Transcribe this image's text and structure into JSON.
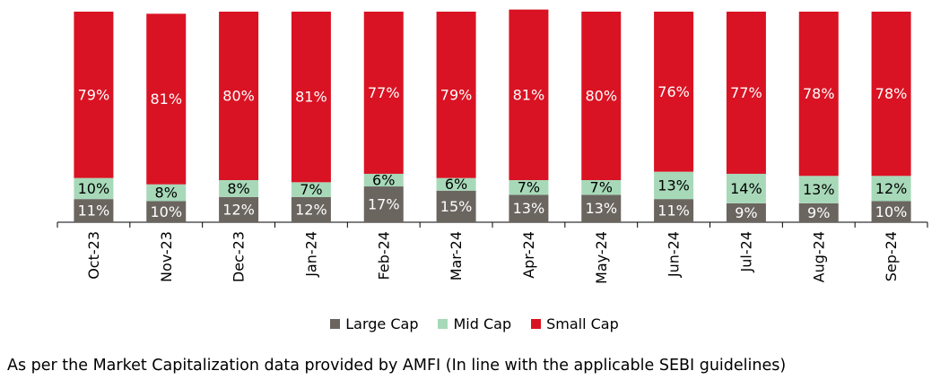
{
  "chart_data": {
    "type": "bar",
    "stacked": true,
    "categories": [
      "Oct-23",
      "Nov-23",
      "Dec-23",
      "Jan-24",
      "Feb-24",
      "Mar-24",
      "Apr-24",
      "May-24",
      "Jun-24",
      "Jul-24",
      "Aug-24",
      "Sep-24"
    ],
    "series": [
      {
        "name": "Large Cap",
        "color": "#6b6560",
        "label_color": "#ffffff",
        "values": [
          11,
          10,
          12,
          12,
          17,
          15,
          13,
          13,
          11,
          9,
          9,
          10
        ]
      },
      {
        "name": "Mid Cap",
        "color": "#a7d9b9",
        "label_color": "#000000",
        "values": [
          10,
          8,
          8,
          7,
          6,
          6,
          7,
          7,
          13,
          14,
          13,
          12
        ]
      },
      {
        "name": "Small Cap",
        "color": "#d91323",
        "label_color": "#ffffff",
        "values": [
          79,
          81,
          80,
          81,
          77,
          79,
          81,
          80,
          76,
          77,
          78,
          78
        ]
      }
    ],
    "data_labels_suffix": "%",
    "legend_position": "bottom",
    "grid": false
  },
  "footnote": "As per the Market Capitalization data provided by AMFI (In line with the applicable SEBI guidelines)"
}
